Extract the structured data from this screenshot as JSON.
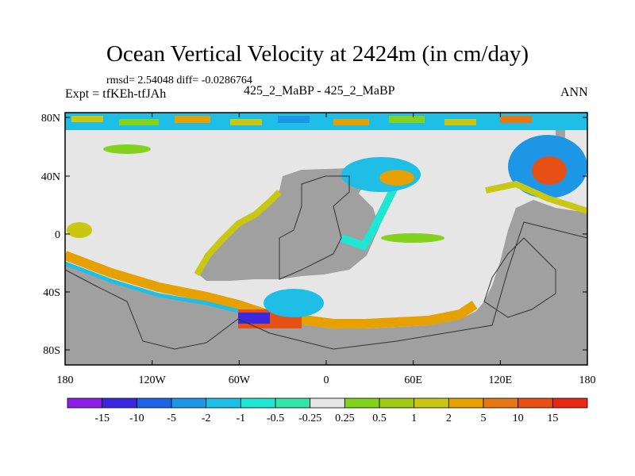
{
  "chart_data": {
    "type": "heatmap",
    "title": "Ocean Vertical Velocity at 2424m (in cm/day)",
    "stats_line": "rmsd= 2.54048 diff= -0.0286764",
    "experiment_label": "Expt = tfKEh-tfJAh",
    "case_label": "425_2_MaBP - 425_2_MaBP",
    "season_label": "ANN",
    "x_ticks": [
      "180",
      "120W",
      "60W",
      "0",
      "60E",
      "120E",
      "180"
    ],
    "y_ticks": [
      "80N",
      "40N",
      "0",
      "40S",
      "80S"
    ],
    "colorbar": {
      "labels": [
        "-15",
        "-10",
        "-5",
        "-2",
        "-1",
        "-0.5",
        "-0.25",
        "0.25",
        "0.5",
        "1",
        "2",
        "5",
        "10",
        "15"
      ],
      "colors": [
        "#8c1ee6",
        "#3c28dc",
        "#1e64e6",
        "#1e96e6",
        "#1ebee6",
        "#1ee6d2",
        "#32e6aa",
        "#e6e6e6",
        "#82d21e",
        "#a0c814",
        "#c8c814",
        "#e6a000",
        "#e67814",
        "#e65014",
        "#e62814"
      ]
    },
    "colors": {
      "land": "#a0a0a0",
      "near_zero": "#e6e6e6",
      "coast_line": "#333333"
    }
  }
}
